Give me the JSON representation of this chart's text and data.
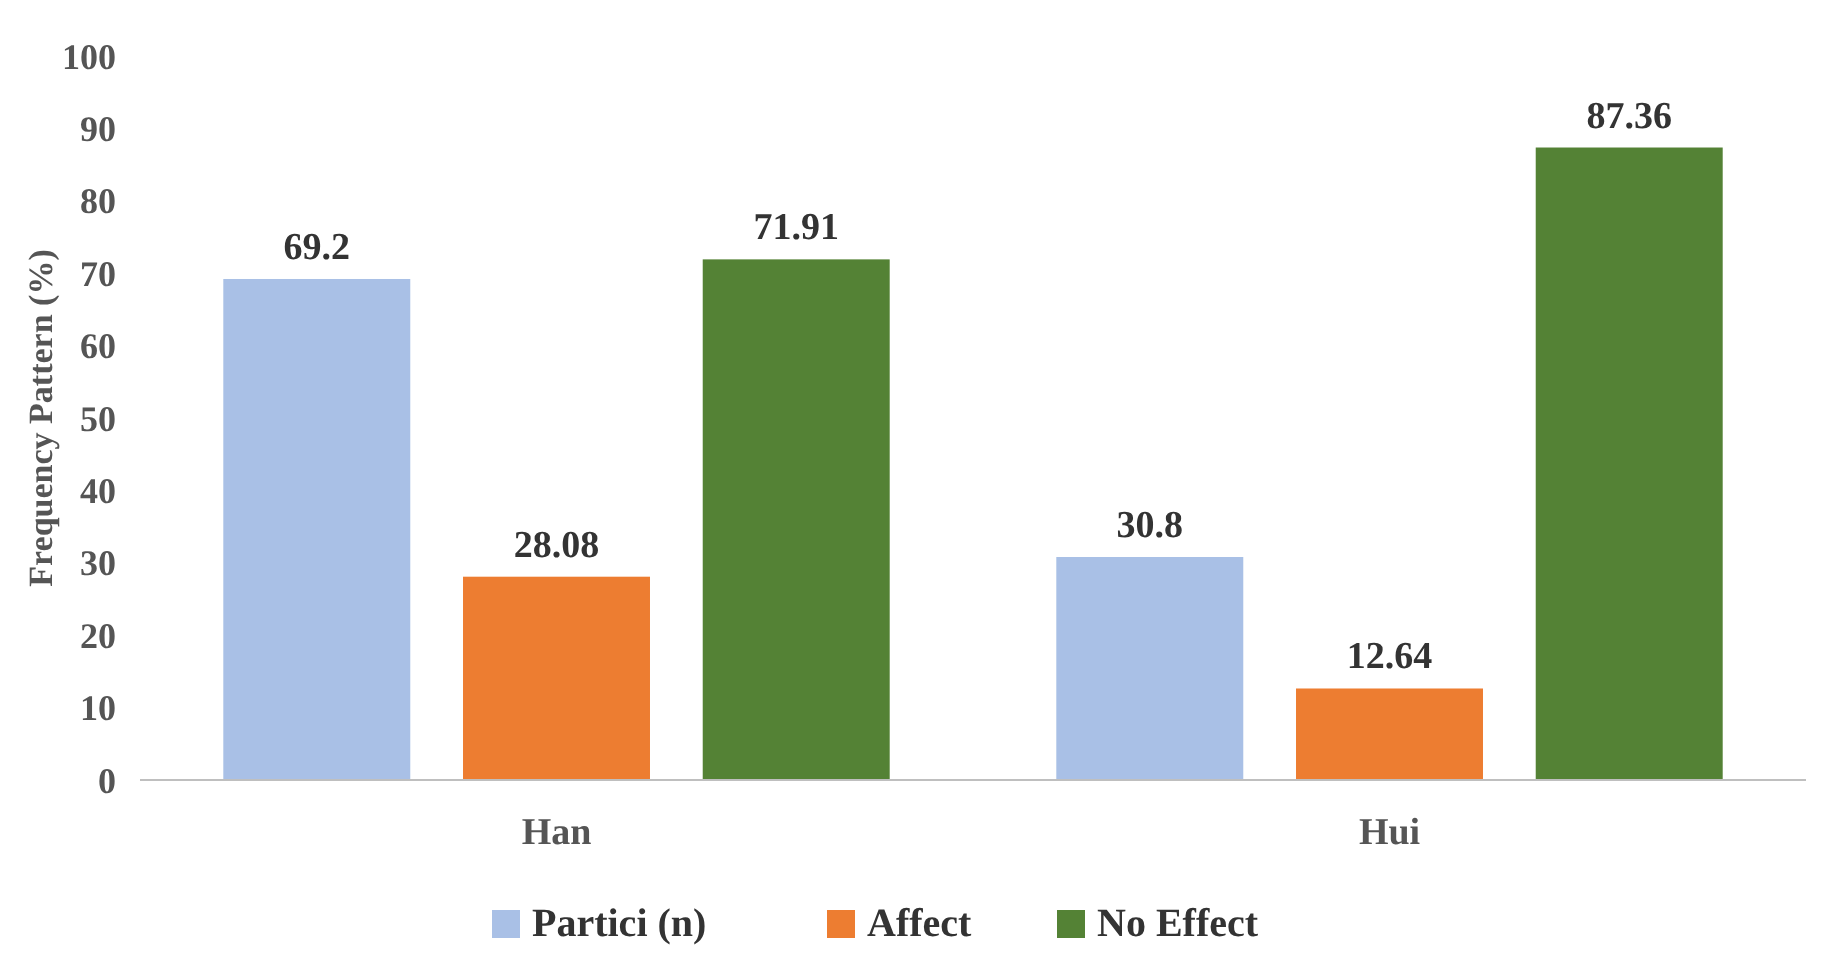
{
  "chart_data": {
    "type": "bar",
    "ylabel": "Frequency Pattern (%)",
    "categories": [
      "Han",
      "Hui"
    ],
    "series": [
      {
        "name": "Partici (n)",
        "color": "#a9c0e6",
        "values": [
          69.2,
          30.8
        ]
      },
      {
        "name": "Affect",
        "color": "#ed7d31",
        "values": [
          28.08,
          12.64
        ]
      },
      {
        "name": "No Effect",
        "color": "#548235",
        "values": [
          71.91,
          87.36
        ]
      }
    ],
    "ylim": [
      0,
      100
    ],
    "yticks": [
      0,
      10,
      20,
      30,
      40,
      50,
      60,
      70,
      80,
      90,
      100
    ],
    "data_labels": true,
    "legend": "bottom",
    "grid": false
  }
}
